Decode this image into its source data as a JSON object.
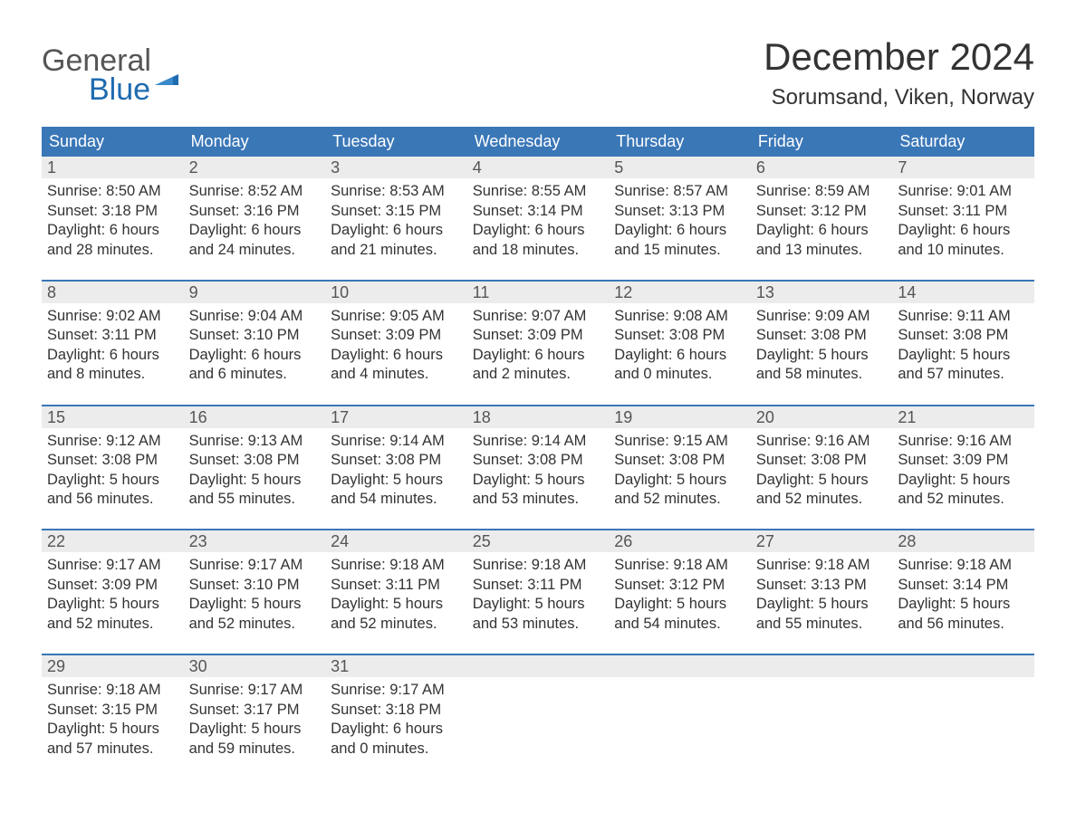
{
  "colors": {
    "header_bg": "#3a77b7",
    "header_text": "#ffffff",
    "daynum_bg": "#ececec",
    "daynum_text": "#555555",
    "body_text": "#333333",
    "week_rule": "#3a77b7",
    "logo_gray": "#555555",
    "logo_blue": "#1f6bb0",
    "page_bg": "#ffffff"
  },
  "typography": {
    "month_title_size_pt": 32,
    "location_size_pt": 18,
    "dow_size_pt": 14,
    "daynum_size_pt": 14,
    "body_size_pt": 12,
    "font_family": "Arial"
  },
  "logo": {
    "word1": "General",
    "word2": "Blue"
  },
  "title": "December 2024",
  "location": "Sorumsand, Viken, Norway",
  "days_of_week": [
    "Sunday",
    "Monday",
    "Tuesday",
    "Wednesday",
    "Thursday",
    "Friday",
    "Saturday"
  ],
  "weeks": [
    [
      {
        "n": "1",
        "sr": "Sunrise: 8:50 AM",
        "ss": "Sunset: 3:18 PM",
        "d1": "Daylight: 6 hours",
        "d2": "and 28 minutes."
      },
      {
        "n": "2",
        "sr": "Sunrise: 8:52 AM",
        "ss": "Sunset: 3:16 PM",
        "d1": "Daylight: 6 hours",
        "d2": "and 24 minutes."
      },
      {
        "n": "3",
        "sr": "Sunrise: 8:53 AM",
        "ss": "Sunset: 3:15 PM",
        "d1": "Daylight: 6 hours",
        "d2": "and 21 minutes."
      },
      {
        "n": "4",
        "sr": "Sunrise: 8:55 AM",
        "ss": "Sunset: 3:14 PM",
        "d1": "Daylight: 6 hours",
        "d2": "and 18 minutes."
      },
      {
        "n": "5",
        "sr": "Sunrise: 8:57 AM",
        "ss": "Sunset: 3:13 PM",
        "d1": "Daylight: 6 hours",
        "d2": "and 15 minutes."
      },
      {
        "n": "6",
        "sr": "Sunrise: 8:59 AM",
        "ss": "Sunset: 3:12 PM",
        "d1": "Daylight: 6 hours",
        "d2": "and 13 minutes."
      },
      {
        "n": "7",
        "sr": "Sunrise: 9:01 AM",
        "ss": "Sunset: 3:11 PM",
        "d1": "Daylight: 6 hours",
        "d2": "and 10 minutes."
      }
    ],
    [
      {
        "n": "8",
        "sr": "Sunrise: 9:02 AM",
        "ss": "Sunset: 3:11 PM",
        "d1": "Daylight: 6 hours",
        "d2": "and 8 minutes."
      },
      {
        "n": "9",
        "sr": "Sunrise: 9:04 AM",
        "ss": "Sunset: 3:10 PM",
        "d1": "Daylight: 6 hours",
        "d2": "and 6 minutes."
      },
      {
        "n": "10",
        "sr": "Sunrise: 9:05 AM",
        "ss": "Sunset: 3:09 PM",
        "d1": "Daylight: 6 hours",
        "d2": "and 4 minutes."
      },
      {
        "n": "11",
        "sr": "Sunrise: 9:07 AM",
        "ss": "Sunset: 3:09 PM",
        "d1": "Daylight: 6 hours",
        "d2": "and 2 minutes."
      },
      {
        "n": "12",
        "sr": "Sunrise: 9:08 AM",
        "ss": "Sunset: 3:08 PM",
        "d1": "Daylight: 6 hours",
        "d2": "and 0 minutes."
      },
      {
        "n": "13",
        "sr": "Sunrise: 9:09 AM",
        "ss": "Sunset: 3:08 PM",
        "d1": "Daylight: 5 hours",
        "d2": "and 58 minutes."
      },
      {
        "n": "14",
        "sr": "Sunrise: 9:11 AM",
        "ss": "Sunset: 3:08 PM",
        "d1": "Daylight: 5 hours",
        "d2": "and 57 minutes."
      }
    ],
    [
      {
        "n": "15",
        "sr": "Sunrise: 9:12 AM",
        "ss": "Sunset: 3:08 PM",
        "d1": "Daylight: 5 hours",
        "d2": "and 56 minutes."
      },
      {
        "n": "16",
        "sr": "Sunrise: 9:13 AM",
        "ss": "Sunset: 3:08 PM",
        "d1": "Daylight: 5 hours",
        "d2": "and 55 minutes."
      },
      {
        "n": "17",
        "sr": "Sunrise: 9:14 AM",
        "ss": "Sunset: 3:08 PM",
        "d1": "Daylight: 5 hours",
        "d2": "and 54 minutes."
      },
      {
        "n": "18",
        "sr": "Sunrise: 9:14 AM",
        "ss": "Sunset: 3:08 PM",
        "d1": "Daylight: 5 hours",
        "d2": "and 53 minutes."
      },
      {
        "n": "19",
        "sr": "Sunrise: 9:15 AM",
        "ss": "Sunset: 3:08 PM",
        "d1": "Daylight: 5 hours",
        "d2": "and 52 minutes."
      },
      {
        "n": "20",
        "sr": "Sunrise: 9:16 AM",
        "ss": "Sunset: 3:08 PM",
        "d1": "Daylight: 5 hours",
        "d2": "and 52 minutes."
      },
      {
        "n": "21",
        "sr": "Sunrise: 9:16 AM",
        "ss": "Sunset: 3:09 PM",
        "d1": "Daylight: 5 hours",
        "d2": "and 52 minutes."
      }
    ],
    [
      {
        "n": "22",
        "sr": "Sunrise: 9:17 AM",
        "ss": "Sunset: 3:09 PM",
        "d1": "Daylight: 5 hours",
        "d2": "and 52 minutes."
      },
      {
        "n": "23",
        "sr": "Sunrise: 9:17 AM",
        "ss": "Sunset: 3:10 PM",
        "d1": "Daylight: 5 hours",
        "d2": "and 52 minutes."
      },
      {
        "n": "24",
        "sr": "Sunrise: 9:18 AM",
        "ss": "Sunset: 3:11 PM",
        "d1": "Daylight: 5 hours",
        "d2": "and 52 minutes."
      },
      {
        "n": "25",
        "sr": "Sunrise: 9:18 AM",
        "ss": "Sunset: 3:11 PM",
        "d1": "Daylight: 5 hours",
        "d2": "and 53 minutes."
      },
      {
        "n": "26",
        "sr": "Sunrise: 9:18 AM",
        "ss": "Sunset: 3:12 PM",
        "d1": "Daylight: 5 hours",
        "d2": "and 54 minutes."
      },
      {
        "n": "27",
        "sr": "Sunrise: 9:18 AM",
        "ss": "Sunset: 3:13 PM",
        "d1": "Daylight: 5 hours",
        "d2": "and 55 minutes."
      },
      {
        "n": "28",
        "sr": "Sunrise: 9:18 AM",
        "ss": "Sunset: 3:14 PM",
        "d1": "Daylight: 5 hours",
        "d2": "and 56 minutes."
      }
    ],
    [
      {
        "n": "29",
        "sr": "Sunrise: 9:18 AM",
        "ss": "Sunset: 3:15 PM",
        "d1": "Daylight: 5 hours",
        "d2": "and 57 minutes."
      },
      {
        "n": "30",
        "sr": "Sunrise: 9:17 AM",
        "ss": "Sunset: 3:17 PM",
        "d1": "Daylight: 5 hours",
        "d2": "and 59 minutes."
      },
      {
        "n": "31",
        "sr": "Sunrise: 9:17 AM",
        "ss": "Sunset: 3:18 PM",
        "d1": "Daylight: 6 hours",
        "d2": "and 0 minutes."
      },
      {
        "n": "",
        "sr": "",
        "ss": "",
        "d1": "",
        "d2": ""
      },
      {
        "n": "",
        "sr": "",
        "ss": "",
        "d1": "",
        "d2": ""
      },
      {
        "n": "",
        "sr": "",
        "ss": "",
        "d1": "",
        "d2": ""
      },
      {
        "n": "",
        "sr": "",
        "ss": "",
        "d1": "",
        "d2": ""
      }
    ]
  ]
}
